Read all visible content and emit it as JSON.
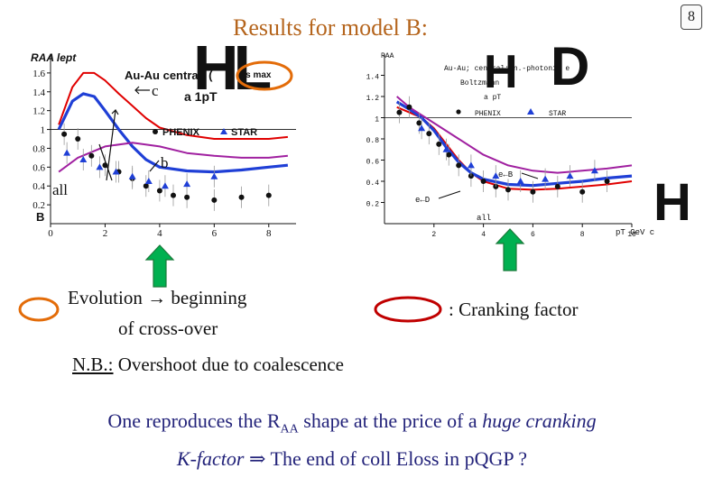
{
  "header": {
    "title": "Results for model B:",
    "page_number": "8"
  },
  "overlay_glyphs": {
    "left": "HL",
    "right_h": "H",
    "right_d": "D",
    "edge_h": "H"
  },
  "colors": {
    "title": "#b5651d",
    "ellipse_orange": "#e36c09",
    "ellipse_red": "#c00000",
    "arrow_green": "#00b050",
    "curve_red": "#e00000",
    "curve_blue": "#1f3fd6",
    "curve_purple": "#a020a0",
    "conclusion": "#23237a"
  },
  "chart_data": [
    {
      "id": "left-panel",
      "type": "line",
      "title": "",
      "ylabel": "R_AA lept",
      "xlabel": "",
      "ylim": [
        0,
        1.8
      ],
      "xlim": [
        0,
        9
      ],
      "x_ticks": [
        "0",
        "2",
        "4",
        "6",
        "8"
      ],
      "y_ticks": [
        "0.2",
        "0.4",
        "0.6",
        "0.8",
        "1",
        "1.2",
        "1.4",
        "1.6"
      ],
      "model_label": "B",
      "legend_title": "Au-Au central; (",
      "legend_subtitle": "a 1pT",
      "legend_overlay": "ns max",
      "legend_entries": [
        "PHENIX",
        "STAR"
      ],
      "series": [
        {
          "name": "c",
          "color": "red",
          "x": [
            0.3,
            0.8,
            1.2,
            1.6,
            2.0,
            2.5,
            3.0,
            3.5,
            4.0,
            5.0,
            6.0,
            7.0,
            8.0,
            8.7
          ],
          "y": [
            1.05,
            1.45,
            1.6,
            1.6,
            1.52,
            1.38,
            1.25,
            1.12,
            1.02,
            0.94,
            0.9,
            0.9,
            0.9,
            0.92
          ]
        },
        {
          "name": "all",
          "color": "blue",
          "x": [
            0.3,
            0.8,
            1.2,
            1.6,
            2.0,
            2.5,
            3.0,
            3.5,
            4.0,
            5.0,
            6.0,
            7.0,
            8.0,
            8.7
          ],
          "y": [
            1.0,
            1.3,
            1.38,
            1.35,
            1.2,
            1.0,
            0.82,
            0.68,
            0.6,
            0.56,
            0.55,
            0.57,
            0.6,
            0.62
          ]
        },
        {
          "name": "b",
          "color": "purple",
          "x": [
            0.3,
            1.0,
            2.0,
            3.0,
            4.0,
            5.0,
            6.0,
            7.0,
            8.0,
            8.7
          ],
          "y": [
            0.55,
            0.7,
            0.82,
            0.86,
            0.82,
            0.75,
            0.72,
            0.7,
            0.7,
            0.72
          ]
        },
        {
          "name": "PHENIX",
          "marker": "circle",
          "color": "black",
          "x": [
            0.5,
            1.0,
            1.5,
            2.0,
            2.5,
            3.0,
            3.5,
            4.0,
            4.5,
            5.0,
            6.0,
            7.0,
            8.0
          ],
          "y": [
            0.95,
            0.9,
            0.72,
            0.62,
            0.55,
            0.48,
            0.4,
            0.35,
            0.3,
            0.28,
            0.25,
            0.28,
            0.3
          ]
        },
        {
          "name": "STAR",
          "marker": "triangle",
          "color": "blue",
          "x": [
            0.6,
            1.2,
            1.8,
            2.4,
            3.0,
            3.6,
            4.2,
            5.0,
            6.0
          ],
          "y": [
            0.75,
            0.68,
            0.6,
            0.55,
            0.5,
            0.45,
            0.4,
            0.42,
            0.5
          ]
        }
      ],
      "annotations": [
        "c",
        "b",
        "all"
      ]
    },
    {
      "id": "right-panel",
      "type": "line",
      "title": "",
      "ylabel": "RAA",
      "xlabel": "pT GeV c",
      "xlim": [
        0,
        10
      ],
      "ylim": [
        0,
        1.6
      ],
      "x_ticks": [
        "2",
        "4",
        "6",
        "8",
        "10"
      ],
      "y_ticks": [
        "0.2",
        "0.4",
        "0.6",
        "0.8",
        "1",
        "1.2",
        "1.4"
      ],
      "legend_lines": [
        "Au-Au; central; n.-photonic e",
        "Boltzmann",
        "a pT"
      ],
      "legend_entries": [
        "PHENIX",
        "STAR"
      ],
      "series": [
        {
          "name": "e←D",
          "color": "red",
          "x": [
            0.5,
            1.0,
            1.5,
            2.0,
            2.5,
            3.0,
            3.5,
            4.0,
            5.0,
            6.0,
            7.0,
            8.0,
            9.0,
            10.0
          ],
          "y": [
            1.1,
            1.05,
            1.0,
            0.9,
            0.75,
            0.6,
            0.48,
            0.4,
            0.33,
            0.32,
            0.33,
            0.35,
            0.37,
            0.4
          ]
        },
        {
          "name": "all",
          "color": "blue",
          "x": [
            0.5,
            1.0,
            1.5,
            2.0,
            2.5,
            3.0,
            3.5,
            4.0,
            5.0,
            6.0,
            7.0,
            8.0,
            9.0,
            10.0
          ],
          "y": [
            1.15,
            1.08,
            1.0,
            0.88,
            0.72,
            0.58,
            0.48,
            0.42,
            0.37,
            0.36,
            0.38,
            0.4,
            0.43,
            0.45
          ]
        },
        {
          "name": "e←B",
          "color": "purple",
          "x": [
            0.5,
            1.0,
            2.0,
            3.0,
            4.0,
            5.0,
            6.0,
            7.0,
            8.0,
            9.0,
            10.0
          ],
          "y": [
            1.2,
            1.1,
            0.95,
            0.8,
            0.65,
            0.55,
            0.5,
            0.48,
            0.5,
            0.52,
            0.55
          ]
        },
        {
          "name": "PHENIX",
          "marker": "circle",
          "color": "black",
          "x": [
            0.6,
            1.0,
            1.4,
            1.8,
            2.2,
            2.6,
            3.0,
            3.5,
            4.0,
            4.5,
            5.0,
            6.0,
            7.0,
            8.0,
            9.0
          ],
          "y": [
            1.05,
            1.1,
            0.95,
            0.85,
            0.75,
            0.65,
            0.55,
            0.45,
            0.4,
            0.35,
            0.32,
            0.3,
            0.35,
            0.3,
            0.4
          ]
        },
        {
          "name": "STAR",
          "marker": "triangle",
          "color": "blue",
          "x": [
            1.5,
            2.5,
            3.5,
            4.5,
            5.5,
            6.5,
            7.5,
            8.5
          ],
          "y": [
            0.9,
            0.7,
            0.55,
            0.45,
            0.4,
            0.42,
            0.45,
            0.5
          ]
        }
      ],
      "annotations": [
        "e←B",
        "e←D",
        "all"
      ]
    }
  ],
  "annotations": {
    "evolution_line1": "Evolution → beginning",
    "evolution_line2": "of cross-over",
    "nb_prefix": "N.B.:",
    "nb_rest": " Overshoot due to coalescence",
    "cranking_factor": ": Cranking factor"
  },
  "conclusion": {
    "line1_before": "One reproduces the R",
    "line1_sub": "AA",
    "line1_mid": " shape at the price of a ",
    "line1_italic": "huge cranking",
    "line2_italic": "K-factor",
    "line2_rest": " ⇒ The end of coll Eloss in pQGP ?"
  }
}
